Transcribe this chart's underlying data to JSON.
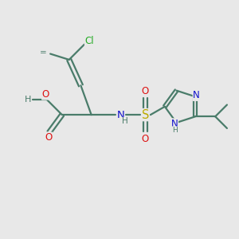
{
  "bg_color": "#e8e8e8",
  "bond_color": "#4a7c6a",
  "cl_color": "#22aa22",
  "o_color": "#dd1111",
  "n_color": "#1111cc",
  "s_color": "#bbaa00",
  "line_width": 1.6,
  "font_size": 8.5,
  "fig_w": 3.0,
  "fig_h": 3.0,
  "dpi": 100,
  "xlim": [
    0,
    10
  ],
  "ylim": [
    0,
    10
  ]
}
